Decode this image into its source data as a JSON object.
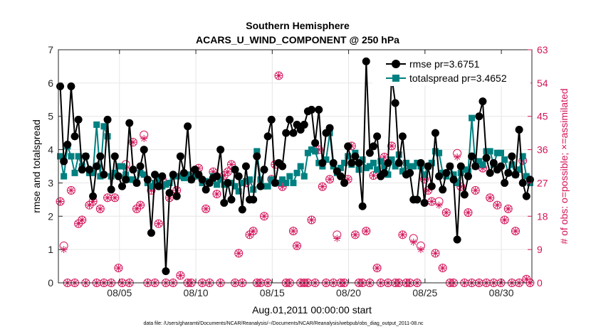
{
  "chart_data": {
    "type": "line",
    "title": "Southern Hemisphere",
    "subtitle": "ACARS_U_WIND_COMPONENT @ 250 hPa",
    "xlabel": "Aug.01,2011 00:00:00 start",
    "ylabel": "rmse and totalspread",
    "y2label": "# of obs: o=possible; ×=assimilated",
    "footnote": "data file: /Users/gharamti/Documents/NCAR/Reanalysis/~/Documents/NCAR/Reanalysis/webpub/obs_diag_output_2011-08.nc",
    "x_tick_labels": [
      "08/05",
      "08/10",
      "08/15",
      "08/20",
      "08/25",
      "08/30"
    ],
    "x_tick_days": [
      5,
      10,
      15,
      20,
      25,
      30
    ],
    "xlim": [
      1,
      32
    ],
    "ylim": [
      0,
      7
    ],
    "y_ticks": [
      0,
      1,
      2,
      3,
      4,
      5,
      6,
      7
    ],
    "y2lim": [
      0,
      63
    ],
    "y2_ticks": [
      0,
      9,
      18,
      27,
      36,
      45,
      54,
      63
    ],
    "grid": true,
    "legend_position": "top-right",
    "colors": {
      "rmse": "#000000",
      "spread": "#008080",
      "obs": "#d4145a"
    },
    "series": [
      {
        "name": "rmse pr=3.6751",
        "marker": "filled-circle",
        "values": [
          5.9,
          3.65,
          4.15,
          5.9,
          4.4,
          4.9,
          3.4,
          3.8,
          3.4,
          2.6,
          3.5,
          3.8,
          3.25,
          4.9,
          2.8,
          3.8,
          3.2,
          2.9,
          3.1,
          4.8,
          3.4,
          3.0,
          3.5,
          4.0,
          3.1,
          1.5,
          3.25,
          2.9,
          3.2,
          0.35,
          2.7,
          3.25,
          2.6,
          3.8,
          3.3,
          4.7,
          3.1,
          3.4,
          3.25,
          3.1,
          2.8,
          3.0,
          3.15,
          3.2,
          4.0,
          2.4,
          3.0,
          2.5,
          3.4,
          3.2,
          2.2,
          3.5,
          2.5,
          2.5,
          3.8,
          2.9,
          3.4,
          4.4,
          4.9,
          3.0,
          3.6,
          3.5,
          4.5,
          4.9,
          4.5,
          4.75,
          4.6,
          4.75,
          5.15,
          5.2,
          4.2,
          5.2,
          3.6,
          4.5,
          4.65,
          3.6,
          3.35,
          3.2,
          3.0,
          4.1,
          3.6,
          3.8,
          3.6,
          2.3,
          6.65,
          3.9,
          4.1,
          4.4,
          3.2,
          3.3,
          3.6,
          6.2,
          5.4,
          3.6,
          4.4,
          3.25,
          3.3,
          2.5,
          2.5,
          3.6,
          2.4,
          3.5,
          2.9,
          4.5,
          3.2,
          2.8,
          3.3,
          3.5,
          3.1,
          1.3,
          3.5,
          2.65,
          3.2,
          3.8,
          3.5,
          5.0,
          5.45,
          3.75,
          3.3,
          3.6,
          3.4,
          3.5,
          3.0,
          3.3,
          3.8,
          3.25,
          4.6,
          3.0,
          2.6,
          3.1
        ]
      },
      {
        "name": "totalspread pr=3.4652",
        "marker": "filled-square",
        "values": [
          3.8,
          3.2,
          4.1,
          3.8,
          3.3,
          3.8,
          3.5,
          3.8,
          3.3,
          3.3,
          4.75,
          3.2,
          4.7,
          4.4,
          3.2,
          3.3,
          3.5,
          3.5,
          3.25,
          3.1,
          3.1,
          3.0,
          3.3,
          3.25,
          3.0,
          2.9,
          3.0,
          3.1,
          2.9,
          2.95,
          3.0,
          3.2,
          3.2,
          3.2,
          3.15,
          3.25,
          3.1,
          3.2,
          3.25,
          3.0,
          3.05,
          3.0,
          3.2,
          2.95,
          3.1,
          2.95,
          3.0,
          3.0,
          2.9,
          2.75,
          3.0,
          3.05,
          3.1,
          2.8,
          3.95,
          3.1,
          2.9,
          2.9,
          3.1,
          3.0,
          3.0,
          3.1,
          3.0,
          3.2,
          3.0,
          3.3,
          3.5,
          3.2,
          3.9,
          4.0,
          3.95,
          3.6,
          3.5,
          3.7,
          4.5,
          3.5,
          3.3,
          3.45,
          3.6,
          3.8,
          3.55,
          3.9,
          3.4,
          3.7,
          3.45,
          3.5,
          3.6,
          3.4,
          3.65,
          3.5,
          3.25,
          3.7,
          3.5,
          3.85,
          3.35,
          3.6,
          3.5,
          3.5,
          3.6,
          3.5,
          3.25,
          3.5,
          3.6,
          3.95,
          3.9,
          3.3,
          3.2,
          3.5,
          3.25,
          3.0,
          3.3,
          3.4,
          3.35,
          4.95,
          3.5,
          3.65,
          3.55,
          3.95,
          3.95,
          3.55,
          3.9,
          3.9,
          3.7,
          3.3,
          3.55,
          3.25,
          3.4,
          3.8,
          3.2,
          3.0
        ]
      },
      {
        "name": "obs possible",
        "marker": "open-circle",
        "values": [
          22,
          10,
          0,
          25,
          0,
          16,
          17,
          0,
          21,
          22,
          0,
          20,
          0,
          23,
          0,
          23,
          4,
          0,
          32,
          0,
          38,
          20,
          21,
          40,
          0,
          25,
          0,
          16,
          28,
          0,
          23,
          0,
          25,
          2,
          29,
          0,
          0,
          29,
          31,
          0,
          20,
          0,
          30,
          24,
          0,
          29,
          30,
          32,
          0,
          8,
          0,
          27,
          13,
          14,
          0,
          0,
          18,
          0,
          28,
          32,
          56,
          26,
          0,
          0,
          14,
          10,
          0,
          0,
          0,
          17,
          0,
          36,
          26,
          0,
          28,
          0,
          13,
          0,
          0,
          28,
          37,
          13,
          0,
          0,
          14,
          0,
          29,
          4,
          0,
          34,
          0,
          37,
          0,
          0,
          13,
          0,
          0,
          12,
          0,
          10,
          28,
          25,
          22,
          8,
          22,
          4,
          19,
          0,
          0,
          35,
          26,
          0,
          19,
          0,
          25,
          0,
          31,
          0,
          23,
          0,
          21,
          0,
          17,
          20,
          0,
          14,
          0,
          33,
          1,
          0
        ]
      },
      {
        "name": "obs assimilated",
        "marker": "asterisk",
        "values": [
          22,
          9,
          0,
          25,
          0,
          16,
          17,
          0,
          21,
          22,
          0,
          20,
          0,
          23,
          0,
          23,
          4,
          0,
          31,
          0,
          38,
          20,
          21,
          39,
          0,
          25,
          0,
          16,
          28,
          0,
          23,
          0,
          25,
          2,
          29,
          0,
          0,
          29,
          31,
          0,
          20,
          0,
          30,
          24,
          0,
          29,
          30,
          32,
          0,
          8,
          0,
          27,
          13,
          14,
          0,
          0,
          18,
          0,
          28,
          32,
          56,
          26,
          0,
          0,
          14,
          10,
          0,
          0,
          0,
          17,
          0,
          36,
          26,
          0,
          28,
          0,
          12,
          0,
          0,
          28,
          37,
          13,
          0,
          0,
          14,
          0,
          29,
          4,
          0,
          34,
          0,
          37,
          0,
          0,
          13,
          0,
          0,
          11,
          0,
          9,
          28,
          25,
          22,
          8,
          21,
          4,
          19,
          0,
          0,
          34,
          26,
          0,
          19,
          0,
          25,
          0,
          31,
          0,
          23,
          0,
          21,
          0,
          17,
          20,
          0,
          14,
          0,
          33,
          1,
          0
        ]
      }
    ]
  }
}
